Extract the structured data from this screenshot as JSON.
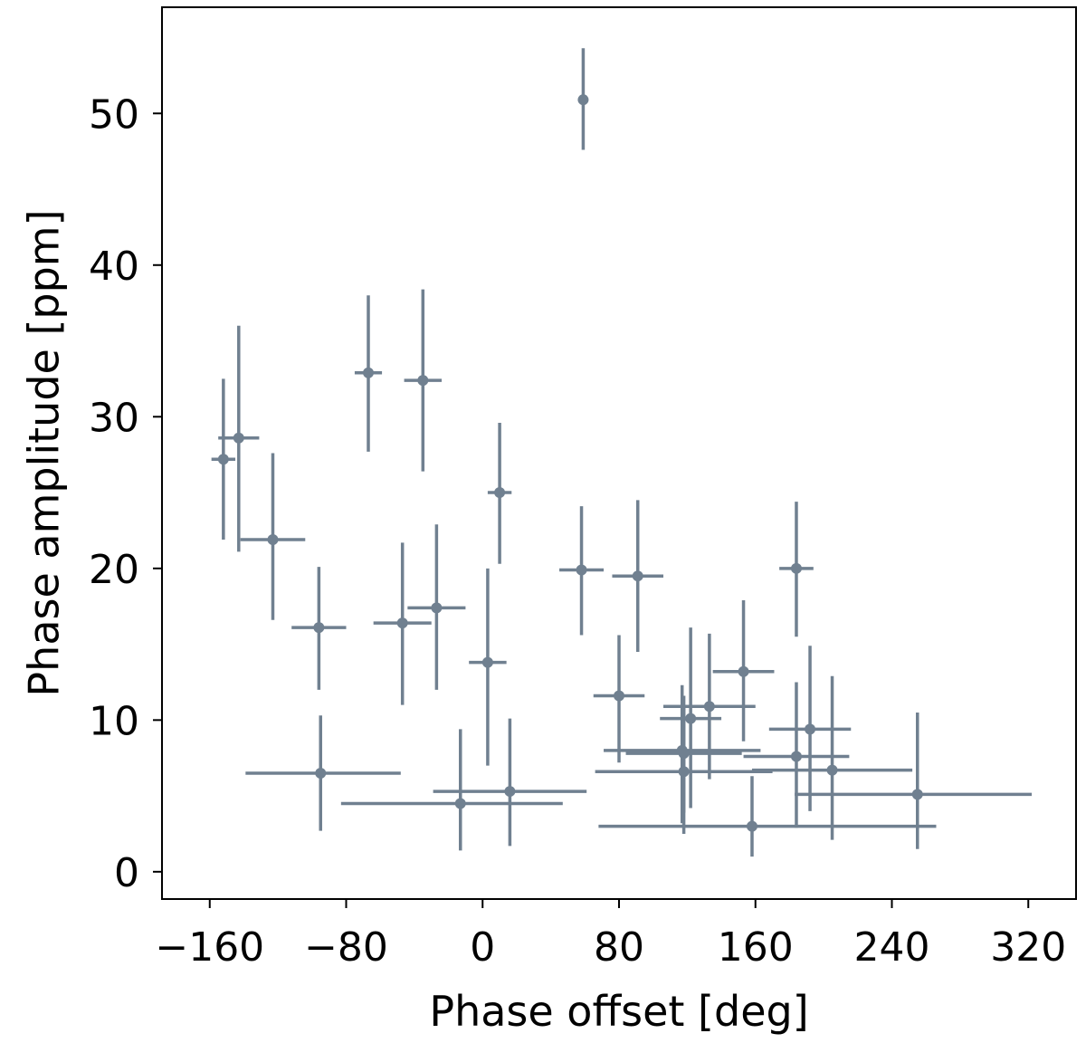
{
  "chart_data": {
    "type": "scatter",
    "title": "",
    "xlabel": "Phase offset [deg]",
    "ylabel": "Phase amplitude [ppm]",
    "xlim": [
      -188,
      348
    ],
    "ylim": [
      -1.8,
      57
    ],
    "xticks": [
      -160,
      -80,
      0,
      80,
      160,
      240,
      320
    ],
    "xtick_labels": [
      "−160",
      "−80",
      "0",
      "80",
      "160",
      "240",
      "320"
    ],
    "yticks": [
      0,
      10,
      20,
      30,
      40,
      50
    ],
    "ytick_labels": [
      "0",
      "10",
      "20",
      "30",
      "40",
      "50"
    ],
    "grid": false,
    "marker_color": "#708090",
    "points": [
      {
        "x": 59,
        "y": 50.9,
        "xerr": [
          0,
          0
        ],
        "yerr": [
          3.3,
          3.4
        ]
      },
      {
        "x": -67,
        "y": 32.9,
        "xerr": [
          8,
          8
        ],
        "yerr": [
          5.2,
          5.1
        ]
      },
      {
        "x": -35,
        "y": 32.4,
        "xerr": [
          11,
          11
        ],
        "yerr": [
          6.0,
          6.0
        ]
      },
      {
        "x": -152,
        "y": 27.2,
        "xerr": [
          7,
          7
        ],
        "yerr": [
          5.3,
          5.3
        ]
      },
      {
        "x": -143,
        "y": 28.6,
        "xerr": [
          12,
          12
        ],
        "yerr": [
          7.5,
          7.4
        ]
      },
      {
        "x": 10,
        "y": 25.0,
        "xerr": [
          7,
          7
        ],
        "yerr": [
          4.7,
          4.6
        ]
      },
      {
        "x": -123,
        "y": 21.9,
        "xerr": [
          19,
          19
        ],
        "yerr": [
          5.3,
          5.7
        ]
      },
      {
        "x": -96,
        "y": 16.1,
        "xerr": [
          16,
          16
        ],
        "yerr": [
          4.1,
          4.0
        ]
      },
      {
        "x": -47,
        "y": 16.4,
        "xerr": [
          17,
          17
        ],
        "yerr": [
          5.4,
          5.3
        ]
      },
      {
        "x": -27,
        "y": 17.4,
        "xerr": [
          17,
          17
        ],
        "yerr": [
          5.4,
          5.5
        ]
      },
      {
        "x": 3,
        "y": 13.8,
        "xerr": [
          11,
          11
        ],
        "yerr": [
          6.8,
          6.2
        ]
      },
      {
        "x": 58,
        "y": 19.9,
        "xerr": [
          13,
          13
        ],
        "yerr": [
          4.3,
          4.2
        ]
      },
      {
        "x": 91,
        "y": 19.5,
        "xerr": [
          15,
          15
        ],
        "yerr": [
          5.0,
          5.0
        ]
      },
      {
        "x": 184,
        "y": 20.0,
        "xerr": [
          10,
          10
        ],
        "yerr": [
          4.5,
          4.4
        ]
      },
      {
        "x": 80,
        "y": 11.6,
        "xerr": [
          15,
          15
        ],
        "yerr": [
          4.4,
          4.0
        ]
      },
      {
        "x": 153,
        "y": 13.2,
        "xerr": [
          18,
          18
        ],
        "yerr": [
          4.6,
          4.7
        ]
      },
      {
        "x": 133,
        "y": 10.9,
        "xerr": [
          27,
          27
        ],
        "yerr": [
          4.8,
          4.8
        ]
      },
      {
        "x": 122,
        "y": 10.1,
        "xerr": [
          18,
          18
        ],
        "yerr": [
          5.9,
          6.0
        ]
      },
      {
        "x": 117,
        "y": 8.0,
        "xerr": [
          46,
          46
        ],
        "yerr": [
          4.8,
          4.3
        ]
      },
      {
        "x": 118,
        "y": 7.8,
        "xerr": [
          34,
          34
        ],
        "yerr": [
          3.9,
          3.8
        ]
      },
      {
        "x": 192,
        "y": 9.4,
        "xerr": [
          24,
          24
        ],
        "yerr": [
          5.4,
          5.5
        ]
      },
      {
        "x": 184,
        "y": 7.6,
        "xerr": [
          31,
          31
        ],
        "yerr": [
          4.7,
          4.9
        ]
      },
      {
        "x": 118,
        "y": 6.6,
        "xerr": [
          52,
          52
        ],
        "yerr": [
          4.1,
          4.3
        ]
      },
      {
        "x": 205,
        "y": 6.7,
        "xerr": [
          47,
          47
        ],
        "yerr": [
          4.6,
          6.2
        ]
      },
      {
        "x": -95,
        "y": 6.5,
        "xerr": [
          44,
          47
        ],
        "yerr": [
          3.8,
          3.8
        ]
      },
      {
        "x": 16,
        "y": 5.3,
        "xerr": [
          45,
          45
        ],
        "yerr": [
          3.6,
          4.8
        ]
      },
      {
        "x": -13,
        "y": 4.5,
        "xerr": [
          70,
          60
        ],
        "yerr": [
          3.1,
          4.9
        ]
      },
      {
        "x": 255,
        "y": 5.1,
        "xerr": [
          72,
          67
        ],
        "yerr": [
          3.6,
          5.4
        ]
      },
      {
        "x": 158,
        "y": 3.0,
        "xerr": [
          90,
          108
        ],
        "yerr": [
          2.0,
          3.3
        ]
      }
    ]
  }
}
